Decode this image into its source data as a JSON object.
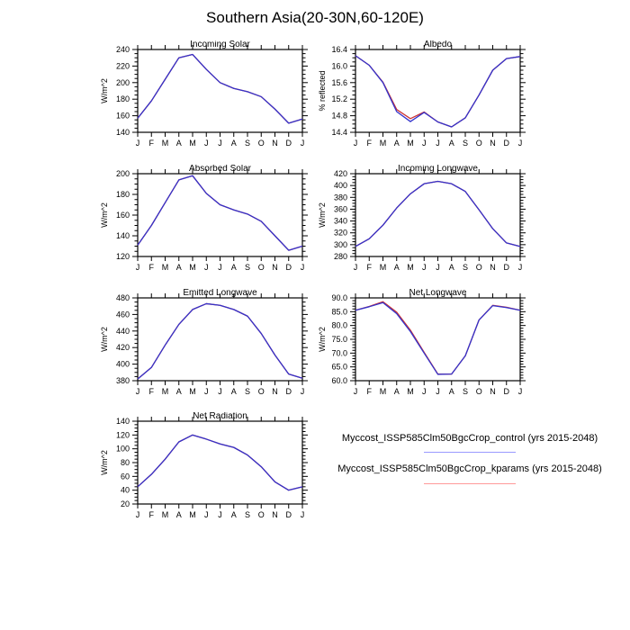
{
  "title": "Southern Asia(20-30N,60-120E)",
  "months": [
    "J",
    "F",
    "M",
    "A",
    "M",
    "J",
    "J",
    "A",
    "S",
    "O",
    "N",
    "D",
    "J"
  ],
  "legend": [
    {
      "name": "control",
      "label": "Myccost_ISSP585Clm50BgcCrop_control (yrs 2015-2048)",
      "line_color": "#9999ff"
    },
    {
      "name": "kparams",
      "label": "Myccost_ISSP585Clm50BgcCrop_kparams (yrs 2015-2048)",
      "line_color": "#ff9999"
    }
  ],
  "chart_data": [
    {
      "type": "line",
      "title": "Incoming Solar",
      "ylabel": "W/m^2",
      "ylim": [
        140,
        240
      ],
      "yticks": [
        140,
        160,
        180,
        200,
        220,
        240
      ],
      "ytick_labels": [
        "140",
        "160",
        "180",
        "200",
        "220",
        "240"
      ],
      "yminor_div": 4,
      "grid": {
        "row": 0,
        "col": 0
      },
      "series": [
        {
          "name": "control",
          "color": "#3333cc",
          "values": [
            157,
            178,
            204,
            230,
            234,
            216,
            200,
            193,
            189,
            183,
            168,
            151,
            156
          ]
        },
        {
          "name": "kparams",
          "color": "#cc3333",
          "values": [
            157,
            178,
            204,
            230,
            234,
            216,
            200,
            193,
            189,
            183,
            168,
            151,
            156
          ]
        }
      ]
    },
    {
      "type": "line",
      "title": "Albedo",
      "ylabel": "% reflected",
      "ylim": [
        14.4,
        16.4
      ],
      "yticks": [
        14.4,
        14.8,
        15.2,
        15.6,
        16.0,
        16.4
      ],
      "ytick_labels": [
        "14.4",
        "14.8",
        "15.2",
        "15.6",
        "16.0",
        "16.4"
      ],
      "yminor_div": 4,
      "grid": {
        "row": 0,
        "col": 1
      },
      "series": [
        {
          "name": "control",
          "color": "#3333cc",
          "values": [
            16.25,
            16.02,
            15.6,
            14.9,
            14.66,
            14.88,
            14.65,
            14.53,
            14.75,
            15.3,
            15.9,
            16.18,
            16.23
          ]
        },
        {
          "name": "kparams",
          "color": "#cc3333",
          "values": [
            16.25,
            16.02,
            15.61,
            14.95,
            14.73,
            14.89,
            14.65,
            14.53,
            14.75,
            15.3,
            15.9,
            16.18,
            16.23
          ]
        }
      ]
    },
    {
      "type": "line",
      "title": "Absorbed Solar",
      "ylabel": "W/m^2",
      "ylim": [
        120,
        200
      ],
      "yticks": [
        120,
        140,
        160,
        180,
        200
      ],
      "ytick_labels": [
        "120",
        "140",
        "160",
        "180",
        "200"
      ],
      "yminor_div": 4,
      "grid": {
        "row": 1,
        "col": 0
      },
      "series": [
        {
          "name": "control",
          "color": "#3333cc",
          "values": [
            131,
            150,
            172,
            194,
            198,
            181,
            170,
            165,
            161,
            154,
            140,
            126,
            130
          ]
        },
        {
          "name": "kparams",
          "color": "#cc3333",
          "values": [
            131,
            150,
            172,
            194,
            198,
            181,
            170,
            165,
            161,
            154,
            140,
            126,
            130
          ]
        }
      ]
    },
    {
      "type": "line",
      "title": "Incoming Longwave",
      "ylabel": "W/m^2",
      "ylim": [
        280,
        420
      ],
      "yticks": [
        280,
        300,
        320,
        340,
        360,
        380,
        400,
        420
      ],
      "ytick_labels": [
        "280",
        "300",
        "320",
        "340",
        "360",
        "380",
        "400",
        "420"
      ],
      "yminor_div": 4,
      "grid": {
        "row": 1,
        "col": 1
      },
      "series": [
        {
          "name": "control",
          "color": "#3333cc",
          "values": [
            297,
            310,
            333,
            362,
            386,
            403,
            407,
            403,
            390,
            359,
            327,
            303,
            297
          ]
        },
        {
          "name": "kparams",
          "color": "#cc3333",
          "values": [
            297,
            310,
            333,
            362,
            386,
            403,
            407,
            403,
            390,
            359,
            327,
            303,
            297
          ]
        }
      ]
    },
    {
      "type": "line",
      "title": "Emitted Longwave",
      "ylabel": "W/m^2",
      "ylim": [
        380,
        480
      ],
      "yticks": [
        380,
        400,
        420,
        440,
        460,
        480
      ],
      "ytick_labels": [
        "380",
        "400",
        "420",
        "440",
        "460",
        "480"
      ],
      "yminor_div": 4,
      "grid": {
        "row": 2,
        "col": 0
      },
      "series": [
        {
          "name": "control",
          "color": "#3333cc",
          "values": [
            382,
            396,
            423,
            448,
            466,
            473,
            471,
            466,
            458,
            437,
            411,
            388,
            383
          ]
        },
        {
          "name": "kparams",
          "color": "#cc3333",
          "values": [
            382,
            396,
            423,
            448,
            466,
            473,
            471,
            466,
            458,
            437,
            411,
            388,
            383
          ]
        }
      ]
    },
    {
      "type": "line",
      "title": "Net Longwave",
      "ylabel": "W/m^2",
      "ylim": [
        60,
        90
      ],
      "yticks": [
        60,
        65,
        70,
        75,
        80,
        85,
        90
      ],
      "ytick_labels": [
        "60.0",
        "65.0",
        "70.0",
        "75.0",
        "80.0",
        "85.0",
        "90.0"
      ],
      "yminor_div": 5,
      "grid": {
        "row": 2,
        "col": 1
      },
      "series": [
        {
          "name": "control",
          "color": "#3333cc",
          "values": [
            85.5,
            86.8,
            88.3,
            84.3,
            77.8,
            70.0,
            62.3,
            62.4,
            69.0,
            82.0,
            87.2,
            86.5,
            85.5
          ]
        },
        {
          "name": "kparams",
          "color": "#cc3333",
          "values": [
            85.5,
            86.9,
            88.6,
            84.8,
            78.3,
            70.3,
            62.4,
            62.4,
            69.0,
            82.0,
            87.3,
            86.6,
            85.5
          ]
        }
      ]
    },
    {
      "type": "line",
      "title": "Net Radiation",
      "ylabel": "W/m^2",
      "ylim": [
        20,
        140
      ],
      "yticks": [
        20,
        40,
        60,
        80,
        100,
        120,
        140
      ],
      "ytick_labels": [
        "20",
        "40",
        "60",
        "80",
        "100",
        "120",
        "140"
      ],
      "yminor_div": 4,
      "grid": {
        "row": 3,
        "col": 0
      },
      "series": [
        {
          "name": "control",
          "color": "#3333cc",
          "values": [
            45,
            63,
            85,
            110,
            120,
            114,
            107,
            102,
            91,
            74,
            52,
            40,
            45
          ]
        },
        {
          "name": "kparams",
          "color": "#cc3333",
          "values": [
            45,
            63,
            85,
            110,
            120,
            114,
            107,
            102,
            91,
            74,
            52,
            40,
            45
          ]
        }
      ]
    }
  ]
}
